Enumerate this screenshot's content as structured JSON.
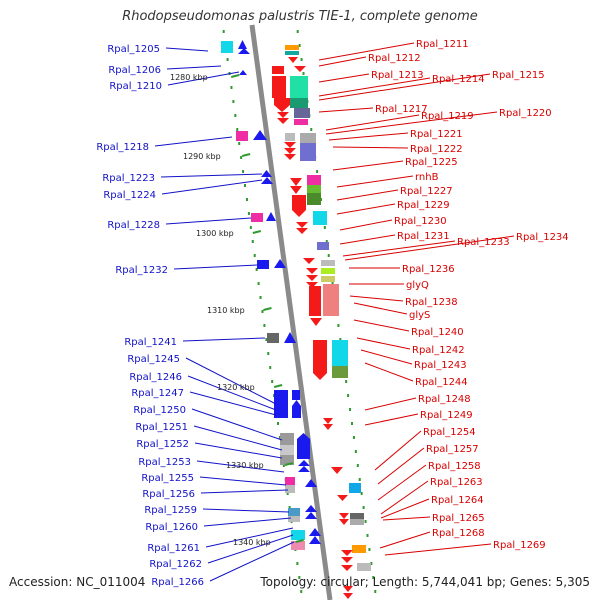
{
  "title": "Rhodopseudomonas palustris TIE-1, complete genome",
  "footer": {
    "accession": "Accession: NC_011004",
    "topology": "Topology: circular; Length: 5,744,041 bp; Genes: 5,305"
  },
  "colors": {
    "left_label": "#1212c8",
    "right_label": "#d80000",
    "backbone": "#8a8a8a",
    "tick": "#2f9a2f",
    "forward_gene": "#1a1aee",
    "reverse_gene": "#f51a1a"
  },
  "scale_labels": [
    "1280 kbp",
    "1290 kbp",
    "1300 kbp",
    "1310 kbp",
    "1320 kbp",
    "1330 kbp",
    "1340 kbp"
  ],
  "left_genes": [
    "Rpal_1205",
    "Rpal_1206",
    "Rpal_1210",
    "Rpal_1218",
    "Rpal_1223",
    "Rpal_1224",
    "Rpal_1228",
    "Rpal_1232",
    "Rpal_1241",
    "Rpal_1245",
    "Rpal_1246",
    "Rpal_1247",
    "Rpal_1250",
    "Rpal_1251",
    "Rpal_1252",
    "Rpal_1253",
    "Rpal_1255",
    "Rpal_1256",
    "Rpal_1259",
    "Rpal_1260",
    "Rpal_1261",
    "Rpal_1262",
    "Rpal_1266"
  ],
  "right_genes": [
    "Rpal_1211",
    "Rpal_1212",
    "Rpal_1213",
    "Rpal_1214",
    "Rpal_1215",
    "Rpal_1217",
    "Rpal_1219",
    "Rpal_1220",
    "Rpal_1221",
    "Rpal_1222",
    "Rpal_1225",
    "rnhB",
    "Rpal_1227",
    "Rpal_1229",
    "Rpal_1230",
    "Rpal_1231",
    "Rpal_1233",
    "Rpal_1234",
    "Rpal_1236",
    "glyQ",
    "Rpal_1238",
    "glyS",
    "Rpal_1240",
    "Rpal_1242",
    "Rpal_1243",
    "Rpal_1244",
    "Rpal_1248",
    "Rpal_1249",
    "Rpal_1254",
    "Rpal_1257",
    "Rpal_1258",
    "Rpal_1263",
    "Rpal_1264",
    "Rpal_1265",
    "Rpal_1268",
    "Rpal_1269"
  ]
}
